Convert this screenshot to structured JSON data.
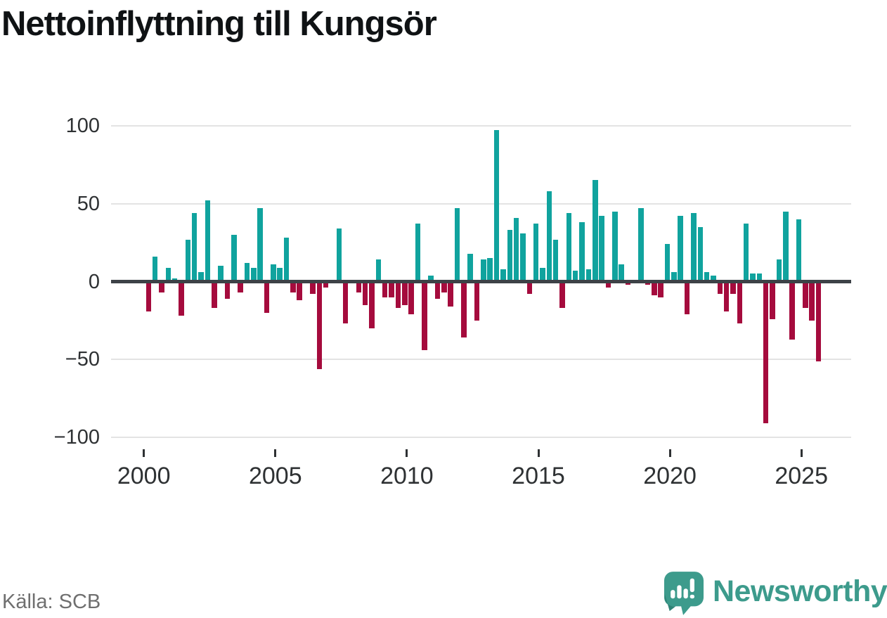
{
  "title": "Nettoinflyttning till Kungsör",
  "source": "Källa: SCB",
  "brand": {
    "name": "Newsworthy",
    "icon": "newsworthy-speech-bubble-chart-icon",
    "color": "#3d9b8c"
  },
  "colors": {
    "positive": "#10a39e",
    "negative": "#a50b3d",
    "zero_line": "#3d4247",
    "gridline": "#e3e3e3"
  },
  "y_axis": {
    "tick_values": [
      100,
      50,
      0,
      -50,
      -100
    ],
    "tick_labels": [
      "100",
      "50",
      "0",
      "−50",
      "−100"
    ]
  },
  "x_axis": {
    "tick_years": [
      2000,
      2005,
      2010,
      2015,
      2020,
      2025
    ],
    "tick_labels": [
      "2000",
      "2005",
      "2010",
      "2015",
      "2020",
      "2025"
    ]
  },
  "chart_data": {
    "type": "bar",
    "title": "Nettoinflyttning till Kungsör",
    "x_unit": "quarter",
    "start": "2000Q1",
    "end": "2025Q3",
    "ylim": [
      -100,
      100
    ],
    "grid": "horizontal",
    "positive_color": "#10a39e",
    "negative_color": "#a50b3d",
    "quarters": [
      "2000Q1",
      "2000Q2",
      "2000Q3",
      "2000Q4",
      "2001Q1",
      "2001Q2",
      "2001Q3",
      "2001Q4",
      "2002Q1",
      "2002Q2",
      "2002Q3",
      "2002Q4",
      "2003Q1",
      "2003Q2",
      "2003Q3",
      "2003Q4",
      "2004Q1",
      "2004Q2",
      "2004Q3",
      "2004Q4",
      "2005Q1",
      "2005Q2",
      "2005Q3",
      "2005Q4",
      "2006Q1",
      "2006Q2",
      "2006Q3",
      "2006Q4",
      "2007Q1",
      "2007Q2",
      "2007Q3",
      "2007Q4",
      "2008Q1",
      "2008Q2",
      "2008Q3",
      "2008Q4",
      "2009Q1",
      "2009Q2",
      "2009Q3",
      "2009Q4",
      "2010Q1",
      "2010Q2",
      "2010Q3",
      "2010Q4",
      "2011Q1",
      "2011Q2",
      "2011Q3",
      "2011Q4",
      "2012Q1",
      "2012Q2",
      "2012Q3",
      "2012Q4",
      "2013Q1",
      "2013Q2",
      "2013Q3",
      "2013Q4",
      "2014Q1",
      "2014Q2",
      "2014Q3",
      "2014Q4",
      "2015Q1",
      "2015Q2",
      "2015Q3",
      "2015Q4",
      "2016Q1",
      "2016Q2",
      "2016Q3",
      "2016Q4",
      "2017Q1",
      "2017Q2",
      "2017Q3",
      "2017Q4",
      "2018Q1",
      "2018Q2",
      "2018Q3",
      "2018Q4",
      "2019Q1",
      "2019Q2",
      "2019Q3",
      "2019Q4",
      "2020Q1",
      "2020Q2",
      "2020Q3",
      "2020Q4",
      "2021Q1",
      "2021Q2",
      "2021Q3",
      "2021Q4",
      "2022Q1",
      "2022Q2",
      "2022Q3",
      "2022Q4",
      "2023Q1",
      "2023Q2",
      "2023Q3",
      "2023Q4",
      "2024Q1",
      "2024Q2",
      "2024Q3",
      "2024Q4",
      "2025Q1",
      "2025Q2",
      "2025Q3"
    ],
    "values": [
      -19,
      16,
      -7,
      9,
      2,
      -22,
      27,
      44,
      6,
      52,
      -17,
      10,
      -11,
      30,
      -7,
      12,
      9,
      47,
      -20,
      11,
      9,
      28,
      -7,
      -12,
      0,
      -8,
      -56,
      -4,
      0,
      34,
      -27,
      0,
      -7,
      -15,
      -30,
      14,
      -10,
      -10,
      -17,
      -15,
      -21,
      37,
      -44,
      4,
      -11,
      -7,
      -16,
      47,
      -36,
      18,
      -25,
      14,
      15,
      97,
      8,
      33,
      41,
      31,
      -8,
      37,
      9,
      58,
      27,
      -17,
      44,
      7,
      38,
      8,
      65,
      42,
      -4,
      45,
      11,
      -2,
      0,
      47,
      -2,
      -9,
      -10,
      24,
      6,
      42,
      -21,
      44,
      35,
      6,
      4,
      -8,
      -19,
      -8,
      -27,
      37,
      5,
      5,
      -91,
      -24,
      14,
      45,
      -37,
      40,
      -17,
      -25,
      -51
    ]
  }
}
